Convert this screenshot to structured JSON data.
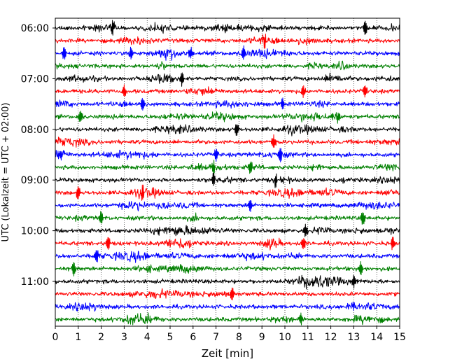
{
  "chart_data": {
    "type": "line",
    "chart_kind": "helicorder (seismogram drum plot)",
    "xlabel": "Zeit  [min]",
    "ylabel": "UTC (Lokalzeit = UTC + 02:00)",
    "xlim": [
      0,
      15
    ],
    "x_ticks": [
      "0",
      "1",
      "2",
      "3",
      "4",
      "5",
      "6",
      "7",
      "8",
      "9",
      "10",
      "11",
      "12",
      "13",
      "14",
      "15"
    ],
    "y_tick_labels": [
      "06:00",
      "07:00",
      "08:00",
      "09:00",
      "10:00",
      "11:00"
    ],
    "rows_start": "06:00",
    "rows_end": "11:45",
    "minutes_per_row": 15,
    "grid": "vertical dotted lines at each minute",
    "trace_color_cycle": [
      "#000000",
      "#ff0000",
      "#0000ff",
      "#008000"
    ],
    "trace_amplitude": "continuous microseismic noise with occasional spikes and bursts",
    "notable_events": [
      {
        "row": "06:00",
        "minute": 2.5
      },
      {
        "row": "06:00",
        "minute": 13.5
      },
      {
        "row": "06:15",
        "minute": 9.1
      },
      {
        "row": "06:30",
        "minute": 0.4
      },
      {
        "row": "06:30",
        "minute": 3.3
      },
      {
        "row": "06:30",
        "minute": 5.9
      },
      {
        "row": "06:30",
        "minute": 8.2
      },
      {
        "row": "07:00",
        "minute": 5.5
      },
      {
        "row": "07:15",
        "minute": 3.0
      },
      {
        "row": "07:15",
        "minute": 10.8
      },
      {
        "row": "07:15",
        "minute": 13.5
      },
      {
        "row": "07:30",
        "minute": 3.8
      },
      {
        "row": "07:30",
        "minute": 9.9
      },
      {
        "row": "07:45",
        "minute": 1.1
      },
      {
        "row": "07:45",
        "minute": 12.3
      },
      {
        "row": "08:00",
        "minute": 7.9
      },
      {
        "row": "08:15",
        "minute": 9.5
      },
      {
        "row": "08:30",
        "minute": 0.2
      },
      {
        "row": "08:30",
        "minute": 7.0
      },
      {
        "row": "08:30",
        "minute": 9.8
      },
      {
        "row": "08:45",
        "minute": 6.9
      },
      {
        "row": "08:45",
        "minute": 8.5
      },
      {
        "row": "09:00",
        "minute": 6.9
      },
      {
        "row": "09:00",
        "minute": 9.6
      },
      {
        "row": "09:15",
        "minute": 1.0
      },
      {
        "row": "09:15",
        "minute": 3.8
      },
      {
        "row": "09:30",
        "minute": 8.5
      },
      {
        "row": "09:45",
        "minute": 2.0
      },
      {
        "row": "09:45",
        "minute": 13.4
      },
      {
        "row": "10:00",
        "minute": 10.9
      },
      {
        "row": "10:15",
        "minute": 2.3
      },
      {
        "row": "10:15",
        "minute": 10.8
      },
      {
        "row": "10:15",
        "minute": 14.7
      },
      {
        "row": "10:30",
        "minute": 1.8
      },
      {
        "row": "10:45",
        "minute": 0.8
      },
      {
        "row": "10:45",
        "minute": 13.3
      },
      {
        "row": "11:00",
        "minute": 13.0
      },
      {
        "row": "11:15",
        "minute": 7.7
      },
      {
        "row": "11:45",
        "minute": 10.7
      }
    ]
  }
}
